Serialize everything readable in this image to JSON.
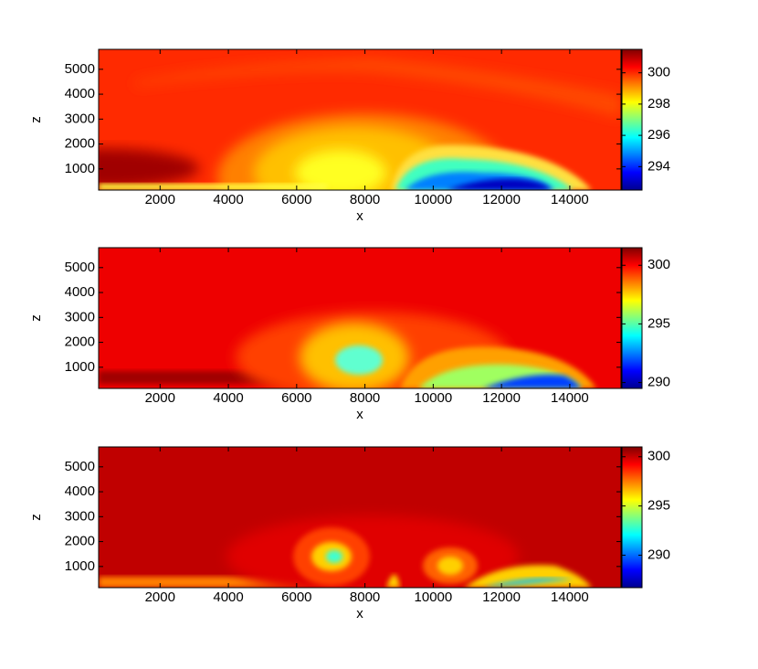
{
  "chart_data": [
    {
      "type": "contour",
      "xlabel": "x",
      "ylabel": "z",
      "xlim": [
        200,
        15500
      ],
      "ylim": [
        150,
        5800
      ],
      "xticks": [
        2000,
        4000,
        6000,
        8000,
        10000,
        12000,
        14000
      ],
      "yticks": [
        1000,
        2000,
        3000,
        4000,
        5000
      ],
      "clim": [
        292.5,
        301.5
      ],
      "cticks": [
        294,
        296,
        298,
        300
      ],
      "colormap": "jet"
    },
    {
      "type": "contour",
      "xlabel": "x",
      "ylabel": "z",
      "xlim": [
        200,
        15500
      ],
      "ylim": [
        150,
        5800
      ],
      "xticks": [
        2000,
        4000,
        6000,
        8000,
        10000,
        12000,
        14000
      ],
      "yticks": [
        1000,
        2000,
        3000,
        4000,
        5000
      ],
      "clim": [
        289.5,
        301.5
      ],
      "cticks": [
        290,
        295,
        300
      ],
      "colormap": "jet"
    },
    {
      "type": "contour",
      "xlabel": "x",
      "ylabel": "z",
      "xlim": [
        200,
        15500
      ],
      "ylim": [
        150,
        5800
      ],
      "xticks": [
        2000,
        4000,
        6000,
        8000,
        10000,
        12000,
        14000
      ],
      "yticks": [
        1000,
        2000,
        3000,
        4000,
        5000
      ],
      "clim": [
        286.7,
        301
      ],
      "cticks": [
        290,
        295,
        300
      ],
      "colormap": "jet"
    }
  ]
}
